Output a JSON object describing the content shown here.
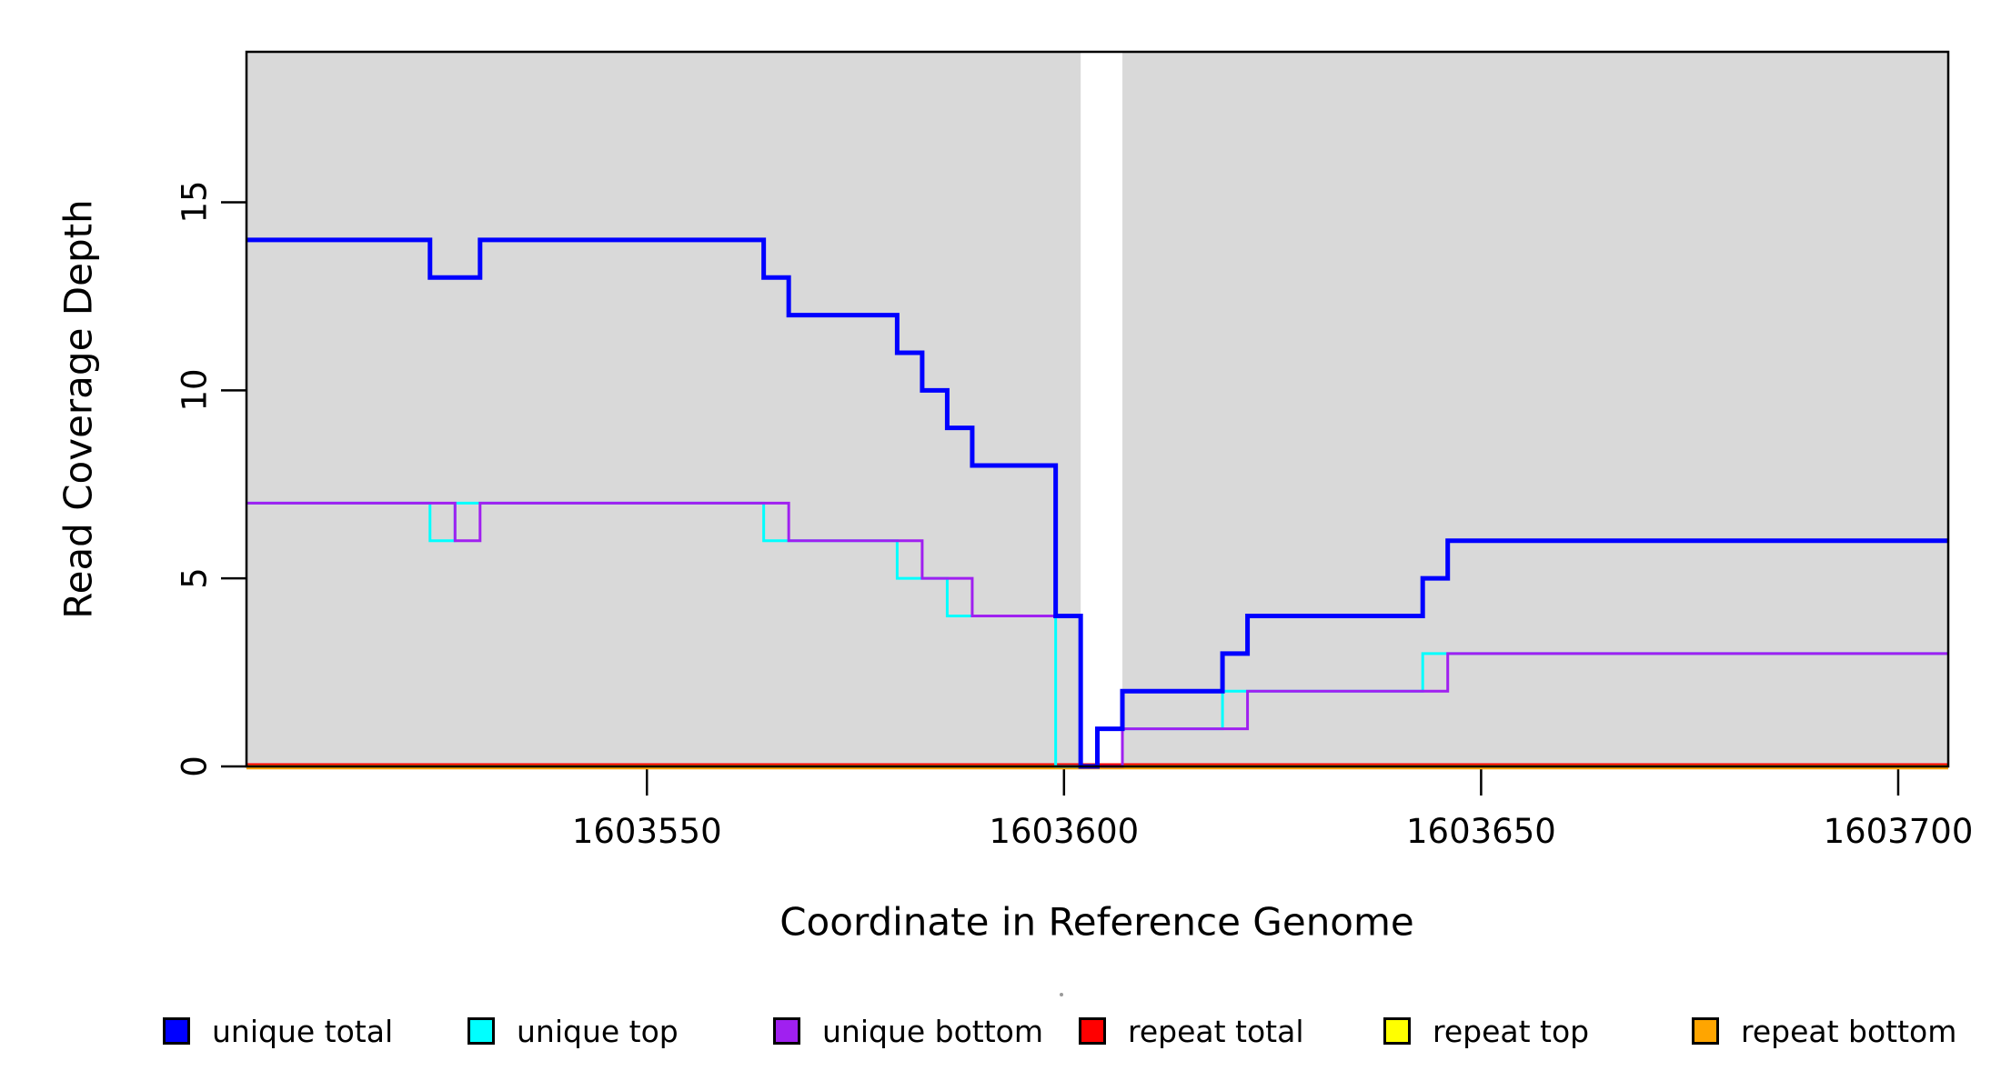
{
  "chart_data": {
    "type": "line",
    "subtype": "step",
    "title": "",
    "xlabel": "Coordinate in Reference Genome",
    "ylabel": "Read Coverage Depth",
    "x_range": [
      1603502,
      1603706
    ],
    "y_range": [
      0,
      19
    ],
    "x_ticks": [
      "1603550",
      "1603600",
      "1603650",
      "1603700"
    ],
    "x_tick_values": [
      1603550,
      1603600,
      1603650,
      1603700
    ],
    "y_ticks": [
      "0",
      "5",
      "10",
      "15"
    ],
    "y_tick_values": [
      0,
      5,
      10,
      15
    ],
    "grid": false,
    "plot_background_color": "#d9d9d9",
    "gap_band": [
      1603602,
      1603607
    ],
    "shaded_regions": [
      [
        1603502,
        1603602
      ],
      [
        1603607,
        1603706
      ]
    ],
    "legend_position": "bottom",
    "series": [
      {
        "name": "unique total",
        "color": "#0000ff",
        "points": [
          [
            1603502,
            14
          ],
          [
            1603524,
            13
          ],
          [
            1603530,
            14
          ],
          [
            1603564,
            13
          ],
          [
            1603567,
            12
          ],
          [
            1603580,
            11
          ],
          [
            1603583,
            10
          ],
          [
            1603586,
            9
          ],
          [
            1603589,
            8
          ],
          [
            1603599,
            4
          ],
          [
            1603602,
            0
          ],
          [
            1603604,
            1
          ],
          [
            1603607,
            2
          ],
          [
            1603619,
            3
          ],
          [
            1603622,
            4
          ],
          [
            1603643,
            5
          ],
          [
            1603646,
            6
          ],
          [
            1603706,
            6
          ]
        ]
      },
      {
        "name": "unique top",
        "color": "#00ffff",
        "points": [
          [
            1603502,
            7
          ],
          [
            1603524,
            6
          ],
          [
            1603527,
            7
          ],
          [
            1603564,
            6
          ],
          [
            1603580,
            5
          ],
          [
            1603586,
            4
          ],
          [
            1603599,
            0
          ],
          [
            1603604,
            1
          ],
          [
            1603619,
            2
          ],
          [
            1603643,
            3
          ],
          [
            1603706,
            3
          ]
        ]
      },
      {
        "name": "unique bottom",
        "color": "#a020f0",
        "points": [
          [
            1603502,
            7
          ],
          [
            1603527,
            6
          ],
          [
            1603530,
            7
          ],
          [
            1603567,
            6
          ],
          [
            1603583,
            5
          ],
          [
            1603589,
            4
          ],
          [
            1603602,
            0
          ],
          [
            1603607,
            1
          ],
          [
            1603622,
            2
          ],
          [
            1603646,
            3
          ],
          [
            1603706,
            3
          ]
        ]
      },
      {
        "name": "repeat total",
        "color": "#ff0000",
        "points": [
          [
            1603502,
            0
          ],
          [
            1603706,
            0
          ]
        ]
      },
      {
        "name": "repeat top",
        "color": "#ffff00",
        "points": [
          [
            1603502,
            0
          ],
          [
            1603706,
            0
          ]
        ]
      },
      {
        "name": "repeat bottom",
        "color": "#ffa500",
        "points": [
          [
            1603502,
            0
          ],
          [
            1603706,
            0
          ]
        ]
      }
    ]
  },
  "axis": {
    "x_title": "Coordinate in Reference Genome",
    "y_title": "Read Coverage Depth"
  }
}
